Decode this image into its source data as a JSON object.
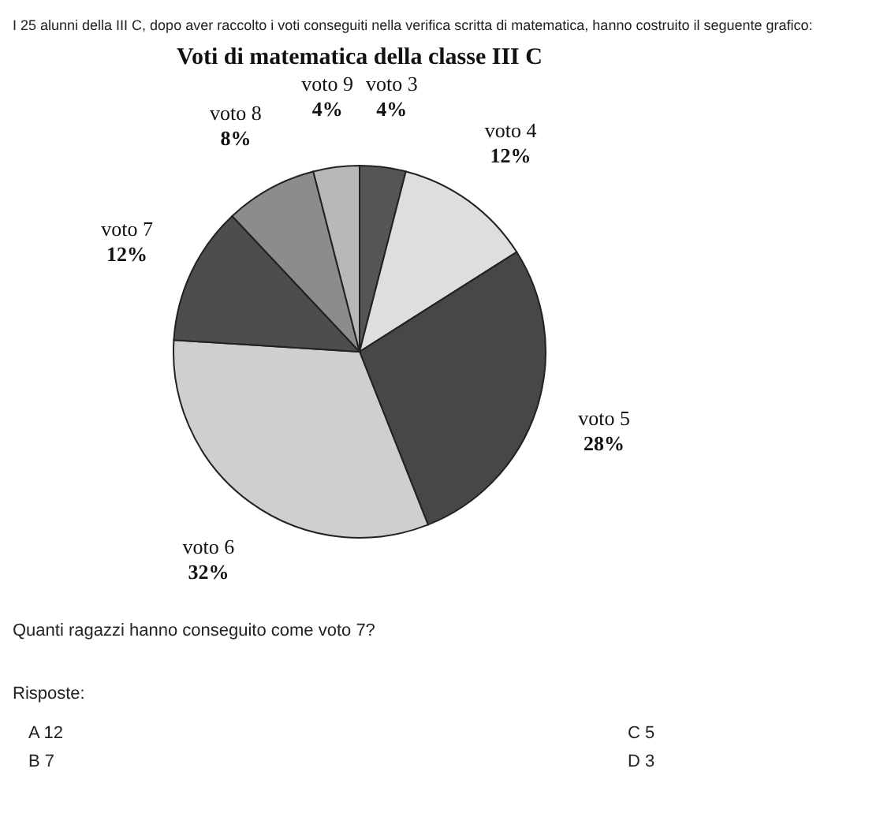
{
  "chart_data": {
    "type": "pie",
    "title": "Voti di matematica della classe III C",
    "categories": [
      "voto 3",
      "voto 4",
      "voto 5",
      "voto 6",
      "voto 7",
      "voto 8",
      "voto 9"
    ],
    "values": [
      4,
      12,
      28,
      32,
      12,
      8,
      4
    ],
    "colors": [
      "#555555",
      "#dedede",
      "#474747",
      "#cfcfcf",
      "#4d4d4d",
      "#8c8c8c",
      "#b8b8b8"
    ],
    "value_labels": [
      "4%",
      "12%",
      "28%",
      "32%",
      "12%",
      "8%",
      "4%"
    ],
    "annotations": [
      "I 25 alunni della III C, dopo aver raccolto i voti conseguiti nella verifica scritta di matematica, hanno costruito il seguente grafico:",
      "Quanti ragazzi hanno conseguito come voto 7?",
      "Risposte:",
      "A    12",
      "B    7",
      "C    5",
      "D    3"
    ]
  }
}
